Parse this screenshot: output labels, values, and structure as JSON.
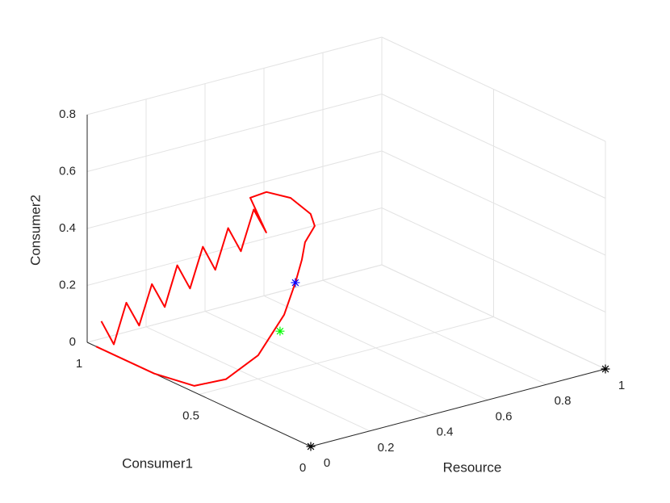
{
  "chart_data": {
    "type": "line3d",
    "xlabel": "Resource",
    "ylabel": "Consumer1",
    "zlabel": "Consumer2",
    "xlim": [
      0,
      1
    ],
    "ylim": [
      0,
      1
    ],
    "zlim": [
      0,
      0.8
    ],
    "xticks": [
      0,
      0.2,
      0.4,
      0.6,
      0.8,
      1
    ],
    "yticks": [
      0,
      0.5,
      1
    ],
    "zticks": [
      0,
      0.2,
      0.4,
      0.6,
      0.8
    ],
    "grid": true,
    "series": [
      {
        "color": "#ff0000",
        "marker": "none",
        "x": [
          0.01,
          0.035,
          0.06,
          0.086,
          0.112,
          0.138,
          0.163,
          0.189,
          0.215,
          0.239,
          0.265,
          0.291,
          0.317,
          0.342,
          0.265,
          0.32,
          0.402,
          0.47,
          0.484,
          0.451,
          0.44,
          0.365,
          0.365,
          0.292,
          0.13,
          0.03,
          0.0,
          0.0,
          0.0
        ],
        "y": [
          0.95,
          0.927,
          0.904,
          0.881,
          0.858,
          0.835,
          0.812,
          0.789,
          0.766,
          0.742,
          0.719,
          0.696,
          0.673,
          0.65,
          0.62,
          0.62,
          0.62,
          0.62,
          0.62,
          0.62,
          0.62,
          0.55,
          0.6,
          0.62,
          0.55,
          0.56,
          0.7,
          0.87,
          0.96
        ],
        "z": [
          0.09,
          0.01,
          0.158,
          0.079,
          0.226,
          0.147,
          0.295,
          0.215,
          0.363,
          0.284,
          0.432,
          0.352,
          0.5,
          0.421,
          0.575,
          0.58,
          0.537,
          0.462,
          0.416,
          0.368,
          0.309,
          0.275,
          0.144,
          0.014,
          0.0,
          0.0,
          0.0,
          0.0,
          0.0
        ]
      },
      {
        "color": "#0000ff",
        "marker": "*",
        "x": [
          0.365
        ],
        "y": [
          0.55
        ],
        "z": [
          0.275
        ]
      },
      {
        "color": "#00ff00",
        "marker": "*",
        "x": [
          0.351
        ],
        "y": [
          0.6
        ],
        "z": [
          0.09
        ]
      },
      {
        "color": "#000000",
        "marker": "*",
        "x": [
          0,
          1
        ],
        "y": [
          0,
          0
        ],
        "z": [
          0,
          0
        ]
      }
    ]
  }
}
